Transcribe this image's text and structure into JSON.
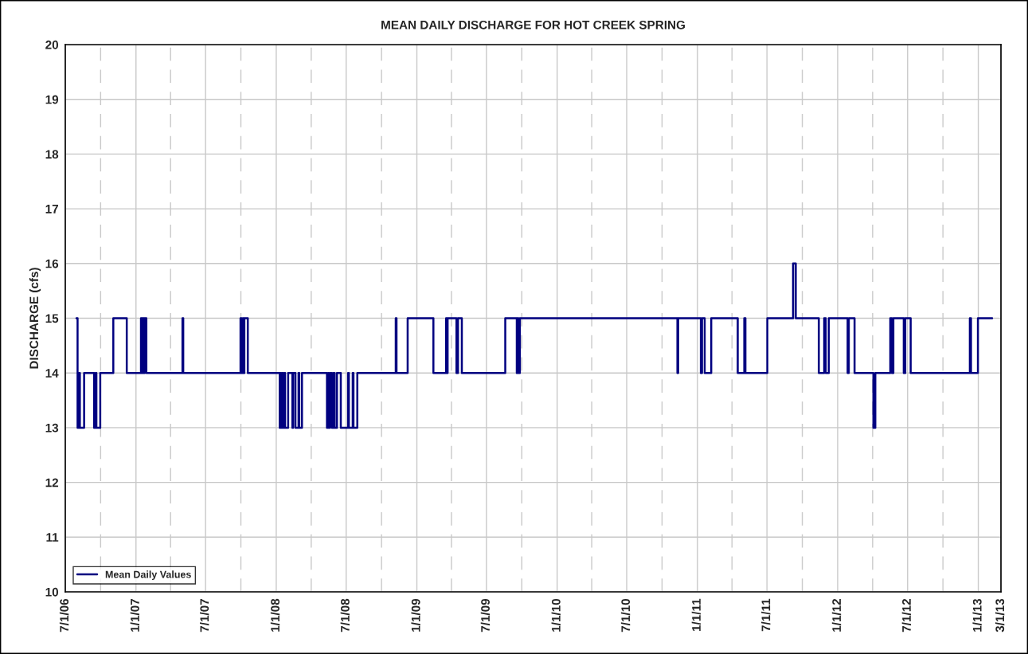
{
  "chart_data": {
    "type": "step",
    "title": "MEAN DAILY DISCHARGE FOR HOT CREEK SPRING",
    "ylabel": "DISCHARGE (cfs)",
    "series": [
      {
        "name": "Mean Daily Values",
        "color": "#000080",
        "x": [
          "2006-07-30",
          "2006-08-02",
          "2006-08-06",
          "2006-08-08",
          "2006-08-19",
          "2006-09-14",
          "2006-09-18",
          "2006-09-20",
          "2006-09-30",
          "2006-11-03",
          "2006-12-08",
          "2007-01-14",
          "2007-01-17",
          "2007-01-19",
          "2007-01-22",
          "2007-01-24",
          "2007-01-28",
          "2007-05-02",
          "2007-05-04",
          "2007-09-30",
          "2007-10-03",
          "2007-10-06",
          "2007-10-08",
          "2007-10-10",
          "2007-10-19",
          "2008-01-10",
          "2008-01-12",
          "2008-01-14",
          "2008-01-17",
          "2008-01-19",
          "2008-01-22",
          "2008-01-24",
          "2008-02-01",
          "2008-02-05",
          "2008-02-12",
          "2008-02-14",
          "2008-02-20",
          "2008-02-28",
          "2008-03-01",
          "2008-03-08",
          "2008-05-12",
          "2008-05-15",
          "2008-05-17",
          "2008-05-20",
          "2008-05-25",
          "2008-05-29",
          "2008-06-01",
          "2008-06-07",
          "2008-06-17",
          "2008-07-06",
          "2008-07-08",
          "2008-07-18",
          "2008-07-20",
          "2008-07-30",
          "2008-11-07",
          "2008-11-09",
          "2008-12-08",
          "2009-02-13",
          "2009-03-18",
          "2009-03-20",
          "2009-03-22",
          "2009-04-14",
          "2009-04-18",
          "2009-04-28",
          "2009-08-19",
          "2009-09-18",
          "2009-09-20",
          "2009-09-22",
          "2009-09-26",
          "2010-11-10",
          "2010-11-12",
          "2011-01-10",
          "2011-01-13",
          "2011-01-20",
          "2011-02-06",
          "2011-04-16",
          "2011-05-03",
          "2011-05-06",
          "2011-07-02",
          "2011-09-07",
          "2011-09-14",
          "2011-11-13",
          "2011-11-27",
          "2011-12-01",
          "2011-12-09",
          "2012-01-27",
          "2012-01-30",
          "2012-02-14",
          "2012-04-03",
          "2012-04-08",
          "2012-05-17",
          "2012-05-21",
          "2012-05-25",
          "2012-06-21",
          "2012-06-25",
          "2012-07-09",
          "2012-12-10",
          "2012-12-13",
          "2012-12-31",
          "2013-02-06"
        ],
        "values": [
          15,
          13,
          14,
          13,
          14,
          13,
          14,
          13,
          14,
          15,
          14,
          15,
          14,
          15,
          14,
          15,
          14,
          15,
          14,
          15,
          14,
          15,
          14,
          15,
          14,
          13,
          14,
          13,
          14,
          13,
          14,
          13,
          14,
          14,
          13,
          14,
          13,
          14,
          13,
          14,
          13,
          14,
          13,
          14,
          13,
          14,
          13,
          14,
          13,
          14,
          13,
          14,
          13,
          14,
          15,
          14,
          15,
          14,
          15,
          14,
          15,
          14,
          15,
          14,
          15,
          14,
          15,
          14,
          15,
          14,
          15,
          14,
          15,
          14,
          15,
          14,
          15,
          14,
          15,
          16,
          15,
          14,
          15,
          14,
          15,
          14,
          15,
          14,
          13,
          14,
          15,
          14,
          15,
          14,
          15,
          14,
          15,
          14,
          15,
          15
        ]
      }
    ],
    "xlim": [
      "2006-07-01",
      "2013-03-01"
    ],
    "xticks": [
      {
        "value": "2006-07-01",
        "label": "7/1/06"
      },
      {
        "value": "2006-10-01",
        "label": null
      },
      {
        "value": "2007-01-01",
        "label": "1/1/07"
      },
      {
        "value": "2007-04-01",
        "label": null
      },
      {
        "value": "2007-07-01",
        "label": "7/1/07"
      },
      {
        "value": "2007-10-01",
        "label": null
      },
      {
        "value": "2008-01-01",
        "label": "1/1/08"
      },
      {
        "value": "2008-04-01",
        "label": null
      },
      {
        "value": "2008-07-01",
        "label": "7/1/08"
      },
      {
        "value": "2008-10-01",
        "label": null
      },
      {
        "value": "2009-01-01",
        "label": "1/1/09"
      },
      {
        "value": "2009-04-01",
        "label": null
      },
      {
        "value": "2009-07-01",
        "label": "7/1/09"
      },
      {
        "value": "2009-10-01",
        "label": null
      },
      {
        "value": "2010-01-01",
        "label": "1/1/10"
      },
      {
        "value": "2010-04-01",
        "label": null
      },
      {
        "value": "2010-07-01",
        "label": "7/1/10"
      },
      {
        "value": "2010-10-01",
        "label": null
      },
      {
        "value": "2011-01-01",
        "label": "1/1/11"
      },
      {
        "value": "2011-04-01",
        "label": null
      },
      {
        "value": "2011-07-01",
        "label": "7/1/11"
      },
      {
        "value": "2011-10-01",
        "label": null
      },
      {
        "value": "2012-01-01",
        "label": "1/1/12"
      },
      {
        "value": "2012-04-01",
        "label": null
      },
      {
        "value": "2012-07-01",
        "label": "7/1/12"
      },
      {
        "value": "2012-10-01",
        "label": null
      },
      {
        "value": "2013-01-01",
        "label": "1/1/13"
      },
      {
        "value": "2013-03-01",
        "label": "3/1/13"
      }
    ],
    "ylim": [
      10,
      20
    ],
    "yticks": [
      10,
      11,
      12,
      13,
      14,
      15,
      16,
      17,
      18,
      19,
      20
    ],
    "grid": true,
    "legend": "bottom left",
    "line_style": "solid",
    "marker": "none"
  }
}
